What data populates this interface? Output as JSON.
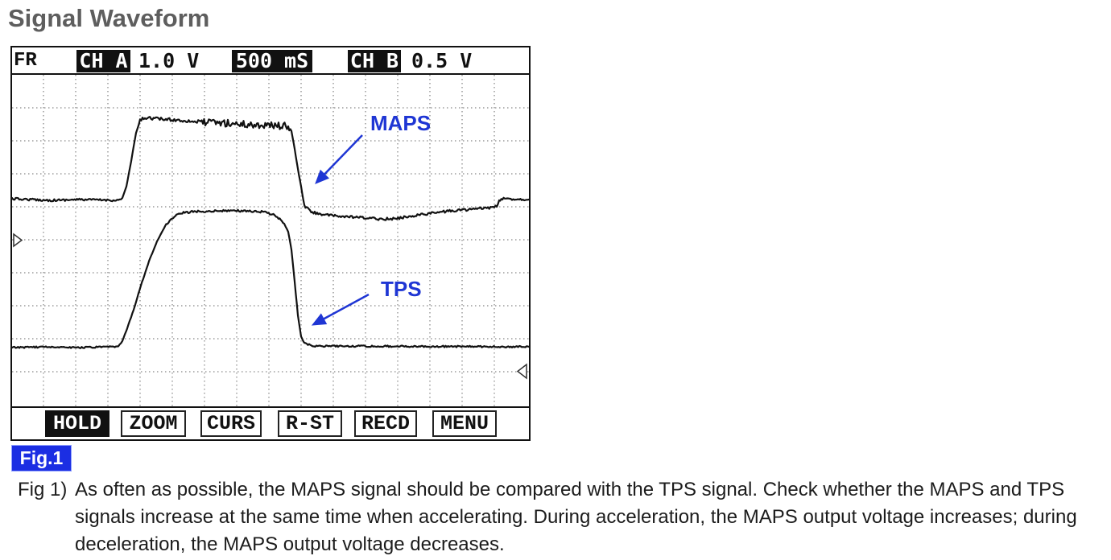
{
  "title": "Signal Waveform",
  "scope": {
    "header": {
      "mode": "FR",
      "ch_a": "CH A",
      "ch_a_scale": "1.0 V",
      "timebase": "500 mS",
      "ch_b": "CH B",
      "ch_b_scale": "0.5 V"
    },
    "trace_labels": {
      "maps": "MAPS",
      "tps": "TPS"
    },
    "trace_color": "#111111",
    "annotation_color": "#1f36d4",
    "icons": {
      "left_marker": "level-marker-right-pointing",
      "right_marker": "level-marker-left-pointing",
      "annotation_arrow": "arrow-icon"
    },
    "buttons": [
      {
        "label": "HOLD",
        "active": true
      },
      {
        "label": "ZOOM",
        "active": false
      },
      {
        "label": "CURS",
        "active": false
      },
      {
        "label": "R-ST",
        "active": false
      },
      {
        "label": "RECD",
        "active": false
      },
      {
        "label": "MENU",
        "active": false
      }
    ]
  },
  "figure_badge": {
    "label": "Fig.1",
    "color": "#1b2ee3"
  },
  "caption": {
    "label": "Fig 1)",
    "lines": [
      "As often as possible, the MAPS signal should be compared with the TPS signal. Check whether the MAPS and TPS",
      "signals increase at the same time when accelerating. During acceleration, the MAPS output voltage increases; during",
      "deceleration, the MAPS output voltage decreases."
    ]
  }
}
